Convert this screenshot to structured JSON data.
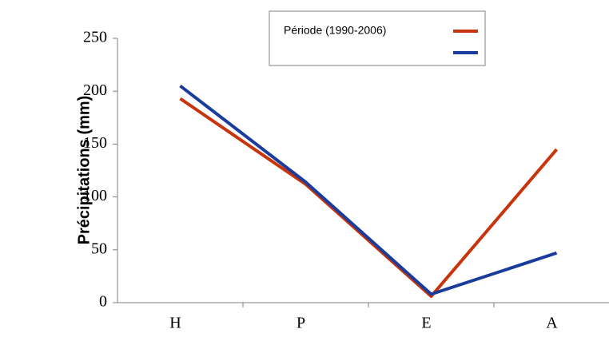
{
  "chart_data": {
    "type": "line",
    "y_label": "Précipitations (mm)",
    "categories": [
      "H",
      "P",
      "E",
      "A"
    ],
    "series": [
      {
        "name": "Période (1990-2006)",
        "color": "#c8340c",
        "values": [
          193,
          112,
          6,
          145
        ]
      },
      {
        "color": "#1a3c9c",
        "values": [
          205,
          114,
          8,
          47
        ]
      }
    ],
    "ylim": [
      0,
      250
    ],
    "yticks": [
      0,
      50,
      100,
      150,
      200,
      250
    ],
    "legend": "top"
  }
}
